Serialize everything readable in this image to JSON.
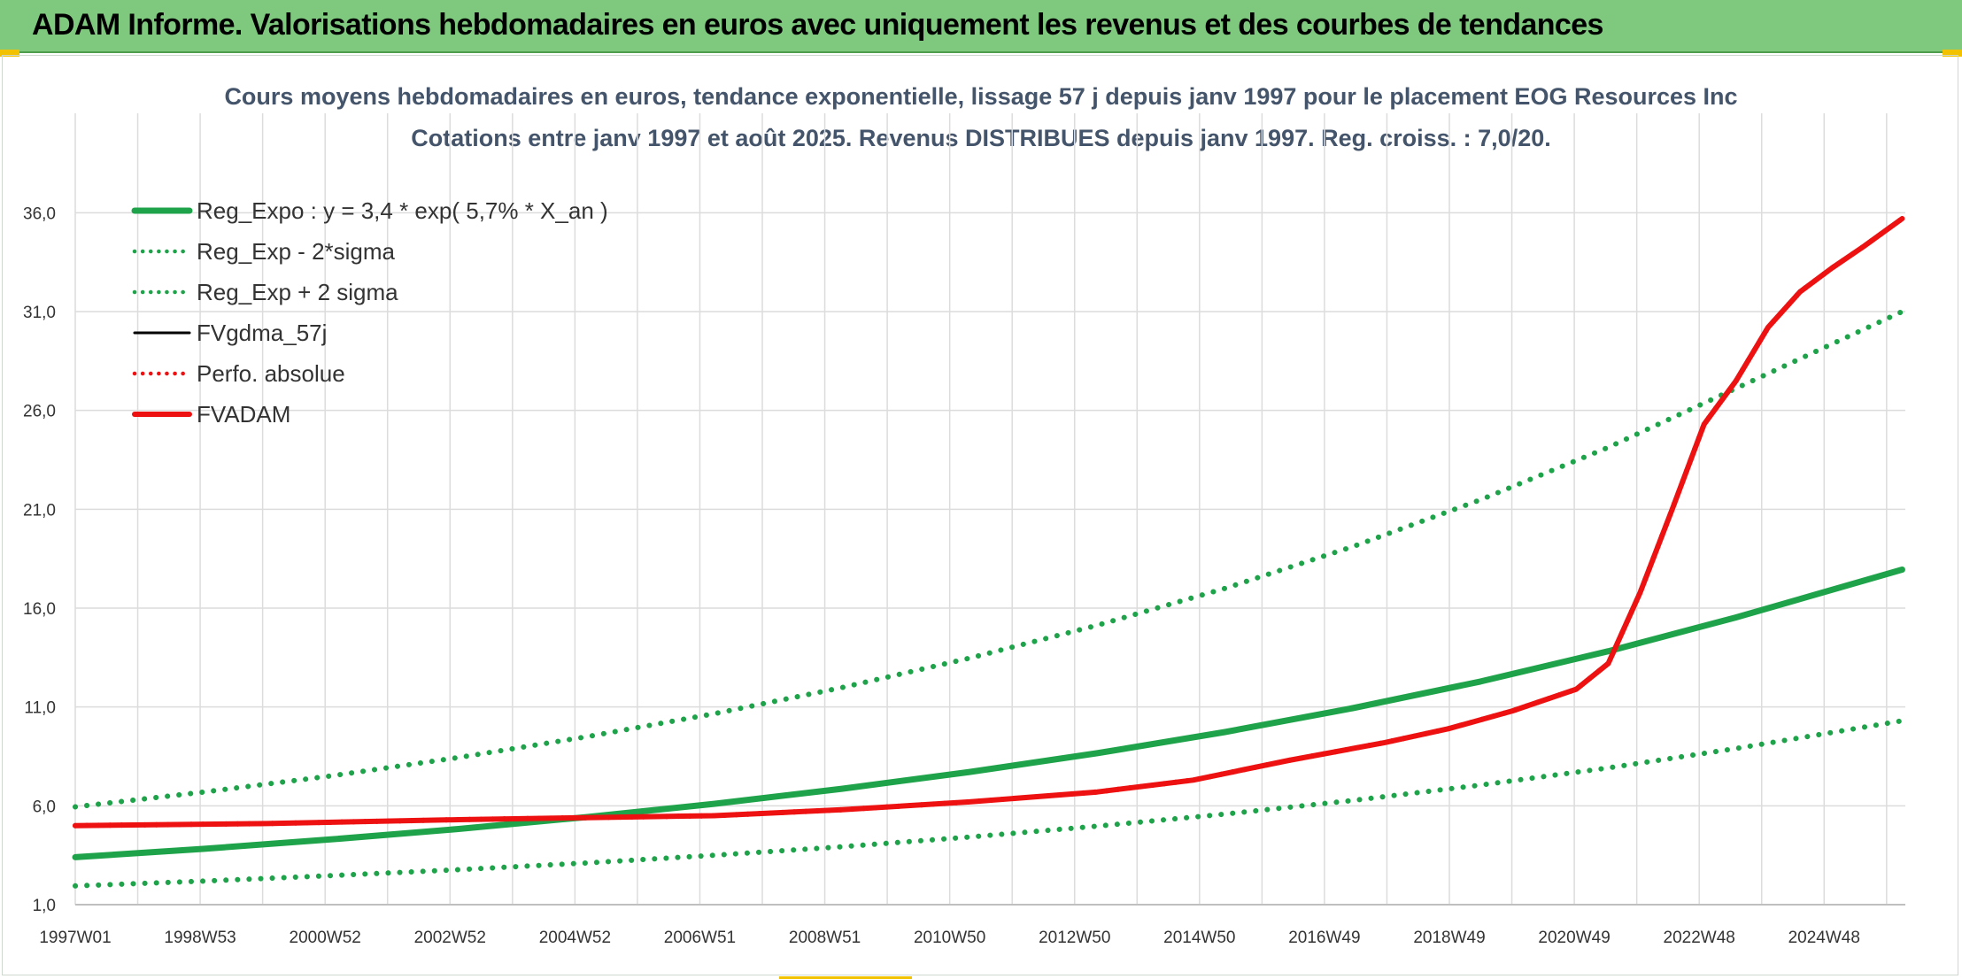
{
  "header": {
    "title": "ADAM Informe. Valorisations hebdomadaires en euros avec uniquement les revenus et des courbes de tendances"
  },
  "colors": {
    "banner": "#7fc97f",
    "trend_green": "#1fa34a",
    "adam_red": "#ee1111",
    "gdma_black": "#000000",
    "grid": "#dcdcdc"
  },
  "chart_data": {
    "type": "line",
    "title": "Cours moyens hebdomadaires en euros, tendance exponentielle, lissage 57 j depuis janv 1997 pour le placement EOG Resources Inc",
    "subtitle": "Cotations entre janv 1997 et août 2025. Revenus DISTRIBUES depuis janv 1997. Reg. croiss. : 7,0/20.",
    "xlabel": "",
    "ylabel": "",
    "x_ticks": [
      "1997W01",
      "1998W53",
      "2000W52",
      "2002W52",
      "2004W52",
      "2006W51",
      "2008W51",
      "2010W50",
      "2012W50",
      "2014W50",
      "2016W49",
      "2018W49",
      "2020W49",
      "2022W48",
      "2024W48"
    ],
    "x_range": [
      1997.0,
      2025.65
    ],
    "y_ticks": [
      "1,0",
      "6,0",
      "11,0",
      "16,0",
      "21,0",
      "26,0",
      "31,0",
      "36,0"
    ],
    "ylim": [
      1.0,
      37.0
    ],
    "grid": true,
    "legend_position": "top-left",
    "series": [
      {
        "name": "Reg_Expo : y = 3,4 * exp( 5,7% *  X_an )",
        "style": "solid",
        "color": "#1fa34a",
        "x": [
          1997,
          1999,
          2001,
          2003,
          2005,
          2007,
          2009,
          2011,
          2013,
          2015,
          2017,
          2019,
          2021,
          2023,
          2025.6
        ],
        "y": [
          3.4,
          3.82,
          4.3,
          4.83,
          5.43,
          6.1,
          6.86,
          7.71,
          8.66,
          9.73,
          10.94,
          12.29,
          13.82,
          15.53,
          17.95
        ]
      },
      {
        "name": "Reg_Exp - 2*sigma",
        "style": "dotted",
        "color": "#1fa34a",
        "x": [
          1997,
          1999,
          2001,
          2003,
          2005,
          2007,
          2009,
          2011,
          2013,
          2015,
          2017,
          2019,
          2021,
          2023,
          2025.6
        ],
        "y": [
          1.95,
          2.19,
          2.47,
          2.77,
          3.11,
          3.5,
          3.93,
          4.42,
          4.97,
          5.58,
          6.27,
          7.05,
          7.92,
          8.9,
          10.3
        ]
      },
      {
        "name": "Reg_Exp + 2 sigma",
        "style": "dotted",
        "color": "#1fa34a",
        "x": [
          1997,
          1999,
          2001,
          2003,
          2005,
          2007,
          2009,
          2011,
          2013,
          2015,
          2017,
          2019,
          2021,
          2023,
          2025.6
        ],
        "y": [
          5.95,
          6.69,
          7.51,
          8.44,
          9.49,
          10.66,
          11.98,
          13.47,
          15.13,
          17.0,
          19.11,
          21.48,
          24.13,
          27.12,
          31.0
        ]
      },
      {
        "name": "FVgdma_57j",
        "style": "solid",
        "color": "#000000",
        "x": [
          1997,
          2000,
          2003,
          2005,
          2007,
          2009,
          2011,
          2013,
          2014.5,
          2016,
          2017.5,
          2018.5,
          2019.5,
          2020.5,
          2021.0,
          2021.5,
          2022.0,
          2022.5,
          2023.0,
          2023.5,
          2024.0,
          2024.5,
          2025.0,
          2025.6
        ],
        "y": [
          5.0,
          5.1,
          5.3,
          5.4,
          5.5,
          5.8,
          6.2,
          6.7,
          7.3,
          8.3,
          9.2,
          9.9,
          10.8,
          11.9,
          13.2,
          16.8,
          21.0,
          25.3,
          27.5,
          30.2,
          32.0,
          33.2,
          34.3,
          35.7
        ]
      },
      {
        "name": "Perfo. absolue",
        "style": "dotted",
        "color": "#ee1111",
        "x": [
          1997,
          2000,
          2003,
          2005,
          2007,
          2009,
          2011,
          2013,
          2014.5,
          2016,
          2017.5,
          2018.5,
          2019.5,
          2020.5,
          2021.0,
          2021.5,
          2022.0,
          2022.5,
          2023.0,
          2023.5,
          2024.0,
          2024.5,
          2025.0,
          2025.6
        ],
        "y": [
          5.0,
          5.1,
          5.3,
          5.4,
          5.5,
          5.8,
          6.2,
          6.7,
          7.3,
          8.3,
          9.2,
          9.9,
          10.8,
          11.9,
          13.2,
          16.8,
          21.0,
          25.3,
          27.5,
          30.2,
          32.0,
          33.2,
          34.3,
          35.7
        ]
      },
      {
        "name": "FVADAM",
        "style": "solid",
        "color": "#ee1111",
        "x": [
          1997,
          2000,
          2003,
          2005,
          2007,
          2009,
          2011,
          2013,
          2014.5,
          2016,
          2017.5,
          2018.5,
          2019.5,
          2020.5,
          2021.0,
          2021.5,
          2022.0,
          2022.5,
          2023.0,
          2023.5,
          2024.0,
          2024.5,
          2025.0,
          2025.6
        ],
        "y": [
          5.0,
          5.1,
          5.3,
          5.4,
          5.5,
          5.8,
          6.2,
          6.7,
          7.3,
          8.3,
          9.2,
          9.9,
          10.8,
          11.9,
          13.2,
          16.8,
          21.0,
          25.3,
          27.5,
          30.2,
          32.0,
          33.2,
          34.3,
          35.7
        ]
      }
    ]
  }
}
